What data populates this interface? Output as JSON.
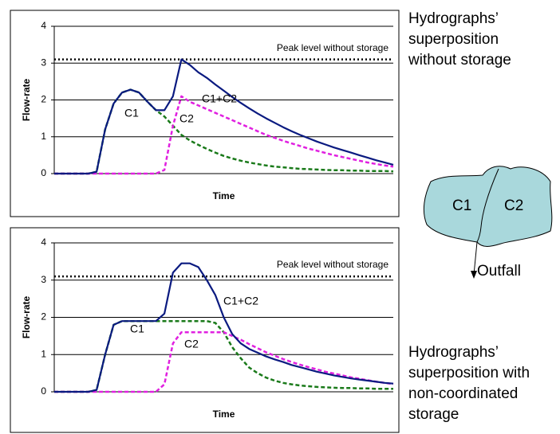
{
  "chart_data": [
    {
      "type": "line",
      "x_label": "Time",
      "y_label": "Flow-rate",
      "categories": [
        null,
        null,
        null,
        null,
        null,
        null,
        null,
        null,
        null,
        null,
        null,
        null,
        null,
        null,
        null,
        null,
        null,
        null,
        null,
        null,
        null,
        null,
        null,
        null,
        null,
        null,
        null,
        null,
        null,
        null,
        null,
        null,
        null,
        null,
        null,
        null,
        null,
        null,
        null,
        null,
        null
      ],
      "ylim": [
        0,
        4
      ],
      "yticks": [
        0,
        1,
        2,
        3,
        4
      ],
      "grid": true,
      "reference": {
        "value": 3.1,
        "label": "Peak level without storage",
        "color": "#000000"
      },
      "series": [
        {
          "name": "C1",
          "color": "#1a7a1a",
          "dashed": true,
          "values": [
            0,
            0,
            0,
            0,
            0,
            0.05,
            1.2,
            1.9,
            2.2,
            2.28,
            2.2,
            1.95,
            1.72,
            1.55,
            1.3,
            1.05,
            0.9,
            0.78,
            0.67,
            0.57,
            0.48,
            0.41,
            0.35,
            0.3,
            0.26,
            0.22,
            0.19,
            0.17,
            0.15,
            0.13,
            0.12,
            0.11,
            0.1,
            0.09,
            0.09,
            0.08,
            0.08,
            0.07,
            0.07,
            0.07,
            0.06
          ]
        },
        {
          "name": "C2",
          "color": "#e020e0",
          "dashed": true,
          "values": [
            0,
            0,
            0,
            0,
            0,
            0,
            0,
            0,
            0,
            0,
            0,
            0,
            0,
            0.1,
            1.3,
            2.1,
            1.95,
            1.85,
            1.75,
            1.65,
            1.55,
            1.45,
            1.35,
            1.25,
            1.15,
            1.05,
            0.97,
            0.89,
            0.82,
            0.75,
            0.68,
            0.62,
            0.56,
            0.5,
            0.45,
            0.4,
            0.35,
            0.3,
            0.26,
            0.22,
            0.19
          ]
        },
        {
          "name": "C1+C2",
          "color": "#0a1a80",
          "dashed": false,
          "values": [
            0,
            0,
            0,
            0,
            0,
            0.05,
            1.2,
            1.9,
            2.2,
            2.28,
            2.2,
            1.95,
            1.72,
            1.72,
            2.1,
            3.1,
            2.95,
            2.75,
            2.6,
            2.42,
            2.25,
            2.08,
            1.92,
            1.77,
            1.63,
            1.5,
            1.38,
            1.26,
            1.15,
            1.05,
            0.96,
            0.87,
            0.79,
            0.71,
            0.64,
            0.57,
            0.5,
            0.43,
            0.36,
            0.3,
            0.24
          ]
        }
      ]
    },
    {
      "type": "line",
      "x_label": "Time",
      "y_label": "Flow-rate",
      "categories": [
        null,
        null,
        null,
        null,
        null,
        null,
        null,
        null,
        null,
        null,
        null,
        null,
        null,
        null,
        null,
        null,
        null,
        null,
        null,
        null,
        null,
        null,
        null,
        null,
        null,
        null,
        null,
        null,
        null,
        null,
        null,
        null,
        null,
        null,
        null,
        null,
        null,
        null,
        null,
        null,
        null
      ],
      "ylim": [
        0,
        4
      ],
      "yticks": [
        0,
        1,
        2,
        3,
        4
      ],
      "grid": true,
      "reference": {
        "value": 3.1,
        "label": "Peak level without storage",
        "color": "#000000"
      },
      "series": [
        {
          "name": "C1",
          "color": "#1a7a1a",
          "dashed": true,
          "values": [
            0,
            0,
            0,
            0,
            0,
            0.05,
            1.0,
            1.8,
            1.9,
            1.9,
            1.9,
            1.9,
            1.9,
            1.9,
            1.9,
            1.9,
            1.9,
            1.9,
            1.9,
            1.85,
            1.6,
            1.2,
            0.9,
            0.65,
            0.5,
            0.38,
            0.3,
            0.24,
            0.2,
            0.17,
            0.15,
            0.13,
            0.12,
            0.11,
            0.1,
            0.1,
            0.09,
            0.09,
            0.08,
            0.08,
            0.08
          ]
        },
        {
          "name": "C2",
          "color": "#e020e0",
          "dashed": true,
          "values": [
            0,
            0,
            0,
            0,
            0,
            0,
            0,
            0,
            0,
            0,
            0,
            0,
            0,
            0.2,
            1.3,
            1.6,
            1.6,
            1.6,
            1.6,
            1.6,
            1.6,
            1.5,
            1.4,
            1.28,
            1.17,
            1.06,
            0.97,
            0.88,
            0.8,
            0.73,
            0.66,
            0.6,
            0.54,
            0.49,
            0.44,
            0.39,
            0.35,
            0.31,
            0.27,
            0.24,
            0.21
          ]
        },
        {
          "name": "C1+C2",
          "color": "#0a1a80",
          "dashed": false,
          "values": [
            0,
            0,
            0,
            0,
            0,
            0.05,
            1.0,
            1.8,
            1.9,
            1.9,
            1.9,
            1.9,
            1.9,
            2.1,
            3.2,
            3.45,
            3.45,
            3.35,
            3.0,
            2.6,
            2.0,
            1.55,
            1.3,
            1.15,
            1.05,
            0.95,
            0.87,
            0.8,
            0.72,
            0.66,
            0.6,
            0.54,
            0.49,
            0.44,
            0.4,
            0.36,
            0.33,
            0.3,
            0.27,
            0.24,
            0.22
          ]
        }
      ]
    }
  ],
  "caption_top": [
    "Hydrographs’",
    "superposition",
    "without storage"
  ],
  "caption_bottom": [
    "Hydrographs’",
    "superposition with",
    "non-coordinated",
    "storage"
  ],
  "diagram": {
    "left": "C1",
    "right": "C2",
    "outlet": "Outfall"
  }
}
